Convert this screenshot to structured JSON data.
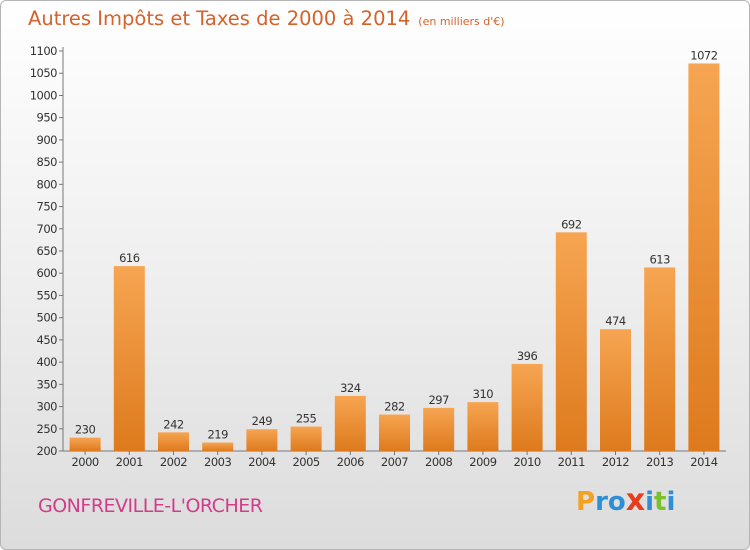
{
  "header": {
    "title": "Autres Impôts et Taxes de 2000 à 2014",
    "unit_note": "(en milliers d'€)"
  },
  "footer": {
    "city": "GONFREVILLE-L'ORCHER",
    "logo_letters": [
      "P",
      "r",
      "o",
      "x",
      "i",
      "t",
      "i"
    ],
    "logo_colors": [
      "#f2a120",
      "#2e8fd6",
      "#2e8fd6",
      "#e83c1f",
      "#2e8fd6",
      "#7bbf2a",
      "#2e8fd6"
    ]
  },
  "colors": {
    "bar_top": "#f6a552",
    "bar_bottom": "#de7a1d",
    "title": "#d4622c",
    "city": "#d23c8a"
  },
  "chart_data": {
    "type": "bar",
    "title": "Autres Impôts et Taxes de 2000 à 2014",
    "subtitle": "(en milliers d'€)",
    "categories": [
      "2000",
      "2001",
      "2002",
      "2003",
      "2004",
      "2005",
      "2006",
      "2007",
      "2008",
      "2009",
      "2010",
      "2011",
      "2012",
      "2013",
      "2014"
    ],
    "values": [
      230,
      616,
      242,
      219,
      249,
      255,
      324,
      282,
      297,
      310,
      396,
      692,
      474,
      613,
      1072
    ],
    "ylim": [
      200,
      1100
    ],
    "ytick_step": 50,
    "ytick_labels": [
      "200",
      "250",
      "300",
      "350",
      "400",
      "450",
      "500",
      "550",
      "600",
      "650",
      "700",
      "750",
      "800",
      "850",
      "900",
      "950",
      "1000",
      "1050",
      "1100"
    ],
    "grid": false,
    "data_labels": true
  }
}
